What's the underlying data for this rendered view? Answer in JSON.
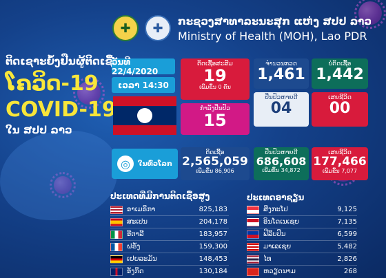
{
  "header": {
    "ministry_lao": "ກະຊວງສາທາລະນະສຸກ ແຫ່ງ ສປປ ລາວ",
    "ministry_en": "Ministry of Health (MOH), Lao PDR"
  },
  "title": {
    "lao_line1": "ຕິດເຊາະຍໍ້ງຢືນຜູ້ຕິດເຊື້ອ",
    "lao_line2": "ໂຄວິດ-19",
    "covid": "COVID-19",
    "lao_line3": "ໃນ ສປປ ລາວ"
  },
  "date": "ວັນທີ 22/4/2020",
  "time": "ເວລາ 14:30",
  "laos": {
    "cumulative_label": "ຕິດເຊື້ອສະສົມ",
    "cumulative_value": "19",
    "cumulative_sub": "ເພີ່ມຂຶ້ນ 0 ຄົນ",
    "tested_label": "ຈໍານວນກວດ",
    "tested_value": "1,461",
    "negative_label": "ບໍ່ຕິດເຊື້ອ",
    "negative_value": "1,442",
    "treatment_label": "ກໍາລັງປິ່ນປົວ",
    "treatment_value": "15",
    "recovered_label": "ປິ່ນປົວຫາຍດີ",
    "recovered_value": "04",
    "deaths_label": "ເສຍຊີວິດ",
    "deaths_value": "00"
  },
  "world": {
    "label": "ໃນທົ່ວໂລກ",
    "infected_label": "ຕິດເຊື້ອ",
    "infected_value": "2,565,059",
    "infected_sub": "ເພີ່ມຂຶ້ນ 86,906",
    "recovered_label": "ປິ່ນປົວຫາຍດີ",
    "recovered_value": "686,608",
    "recovered_sub": "ເພີ່ມຂຶ້ນ 34,872",
    "deaths_label": "ເສຍຊີວິດ",
    "deaths_value": "177,466",
    "deaths_sub": "ເພີ່ມຂຶ້ນ 7,077"
  },
  "top_countries": {
    "title": "ປະເທດທີ່ມີການຕິດເຊື້ອສູງ",
    "rows": [
      {
        "name": "ອາເມຣິກາ",
        "value": "825,183",
        "flag": "usa"
      },
      {
        "name": "ສະເປນ",
        "value": "204,178",
        "flag": "spain"
      },
      {
        "name": "ອີຕາລີ",
        "value": "183,957",
        "flag": "italy"
      },
      {
        "name": "ຝຣັ່ງ",
        "value": "159,300",
        "flag": "france"
      },
      {
        "name": "ເຢຍລະມັນ",
        "value": "148,453",
        "flag": "germany"
      },
      {
        "name": "ອັງກິດ",
        "value": "130,184",
        "flag": "uk"
      }
    ]
  },
  "asean": {
    "title": "ປະເທດອາຊຽນ",
    "rows": [
      {
        "name": "ສິງກະໂປ",
        "value": "9,125",
        "flag": "singapore"
      },
      {
        "name": "ອິນໂດເນເຊຍ",
        "value": "7,135",
        "flag": "indonesia"
      },
      {
        "name": "ຟີລິບປິນ",
        "value": "6,599",
        "flag": "philippines"
      },
      {
        "name": "ມາເລເຊຍ",
        "value": "5,482",
        "flag": "malaysia"
      },
      {
        "name": "ໄທ",
        "value": "2,826",
        "flag": "thailand"
      },
      {
        "name": "ຫວຽດນາມ",
        "value": "268",
        "flag": "vietnam"
      }
    ]
  },
  "colors": {
    "background": "#14418a",
    "accent_yellow": "#f8e63a",
    "red": "#d81b3c",
    "pink": "#d21986",
    "navy": "#1d4a8f",
    "green": "#0d6e5a",
    "cyan": "#1a9ed8"
  }
}
